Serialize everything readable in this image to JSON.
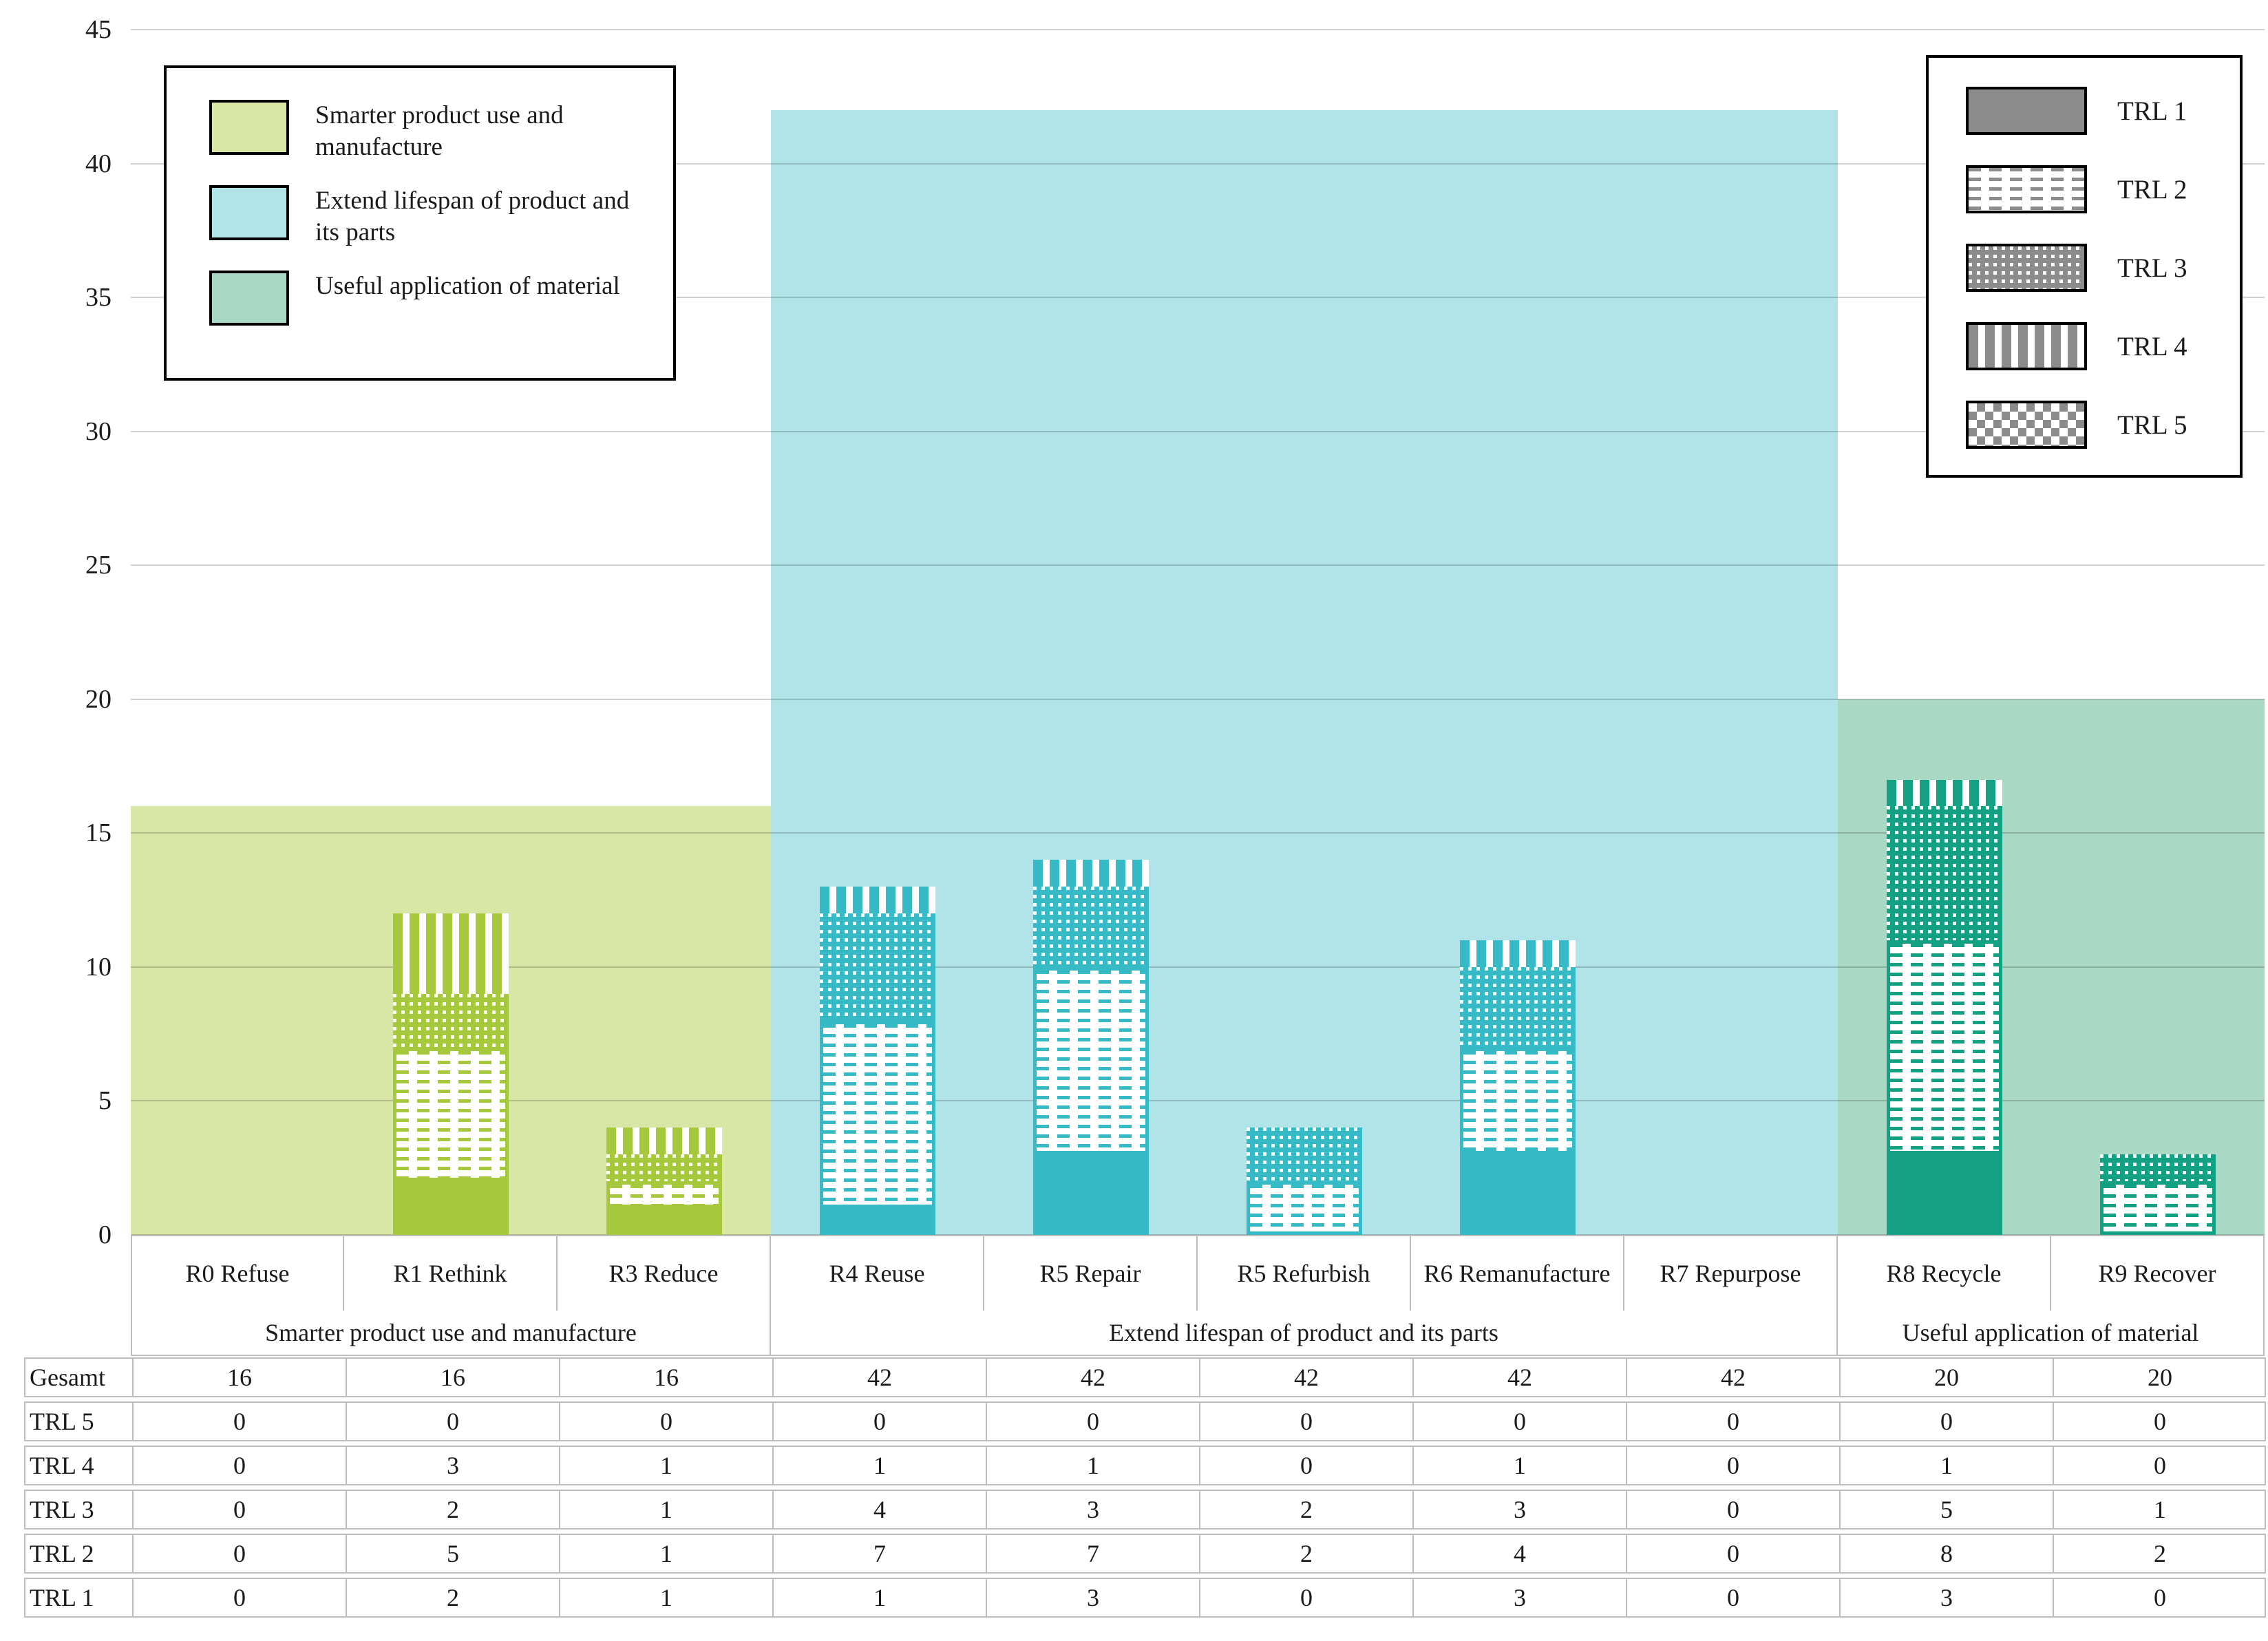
{
  "chart_data": {
    "type": "bar",
    "stacked": true,
    "ylim": [
      0,
      45
    ],
    "ytick_step": 5,
    "grid": true,
    "categories": [
      "R0 Refuse",
      "R1 Rethink",
      "R3 Reduce",
      "R4 Reuse",
      "R5 Repair",
      "R5 Refurbish",
      "R6 Remanufacture",
      "R7 Repurpose",
      "R8 Recycle",
      "R9 Recover"
    ],
    "groups": [
      {
        "label": "Smarter product use and manufacture",
        "span": 3,
        "total": 16,
        "band_color": "#d9e7a6",
        "bar_color": "#a6c83d"
      },
      {
        "label": "Extend lifespan of product and its parts",
        "span": 5,
        "total": 42,
        "band_color": "#b0e4e9",
        "bar_color": "#35bac6"
      },
      {
        "label": "Useful application of material",
        "span": 2,
        "total": 20,
        "band_color": "#a9d8c5",
        "bar_color": "#14a083"
      }
    ],
    "series": [
      {
        "name": "TRL 1",
        "pattern": "solid",
        "values": [
          0,
          2,
          1,
          1,
          3,
          0,
          3,
          0,
          3,
          0
        ]
      },
      {
        "name": "TRL 2",
        "pattern": "dash",
        "values": [
          0,
          5,
          1,
          7,
          7,
          2,
          4,
          0,
          8,
          2
        ]
      },
      {
        "name": "TRL 3",
        "pattern": "dots",
        "values": [
          0,
          2,
          1,
          4,
          3,
          2,
          3,
          0,
          5,
          1
        ]
      },
      {
        "name": "TRL 4",
        "pattern": "vstripe",
        "values": [
          0,
          3,
          1,
          1,
          1,
          0,
          1,
          0,
          1,
          0
        ]
      },
      {
        "name": "TRL 5",
        "pattern": "checker",
        "values": [
          0,
          0,
          0,
          0,
          0,
          0,
          0,
          0,
          0,
          0
        ]
      }
    ],
    "totals_row_label": "Gesamt",
    "totals_row_values": [
      16,
      16,
      16,
      42,
      42,
      42,
      42,
      42,
      20,
      20
    ],
    "table_row_order": [
      "Gesamt",
      "TRL 5",
      "TRL 4",
      "TRL 3",
      "TRL 2",
      "TRL 1"
    ]
  },
  "legend_categories": {
    "items": [
      {
        "label": "Smarter product use and manufacture",
        "color": "#d9e7a6"
      },
      {
        "label": "Extend lifespan of product and its parts",
        "color": "#b0e4e9"
      },
      {
        "label": "Useful application of material",
        "color": "#a9d8c5"
      }
    ]
  },
  "legend_trl": {
    "swatch_color": "#8c8c8c",
    "items": [
      {
        "label": "TRL 1",
        "pattern": "solid"
      },
      {
        "label": "TRL 2",
        "pattern": "dash"
      },
      {
        "label": "TRL 3",
        "pattern": "dots"
      },
      {
        "label": "TRL 4",
        "pattern": "vstripe"
      },
      {
        "label": "TRL 5",
        "pattern": "checker"
      }
    ]
  },
  "colors": {
    "gridline": "rgba(0,0,0,0.18)",
    "table_border": "#bdbdbd",
    "text": "#1b1b1b",
    "legend_gray": "#8c8c8c"
  }
}
